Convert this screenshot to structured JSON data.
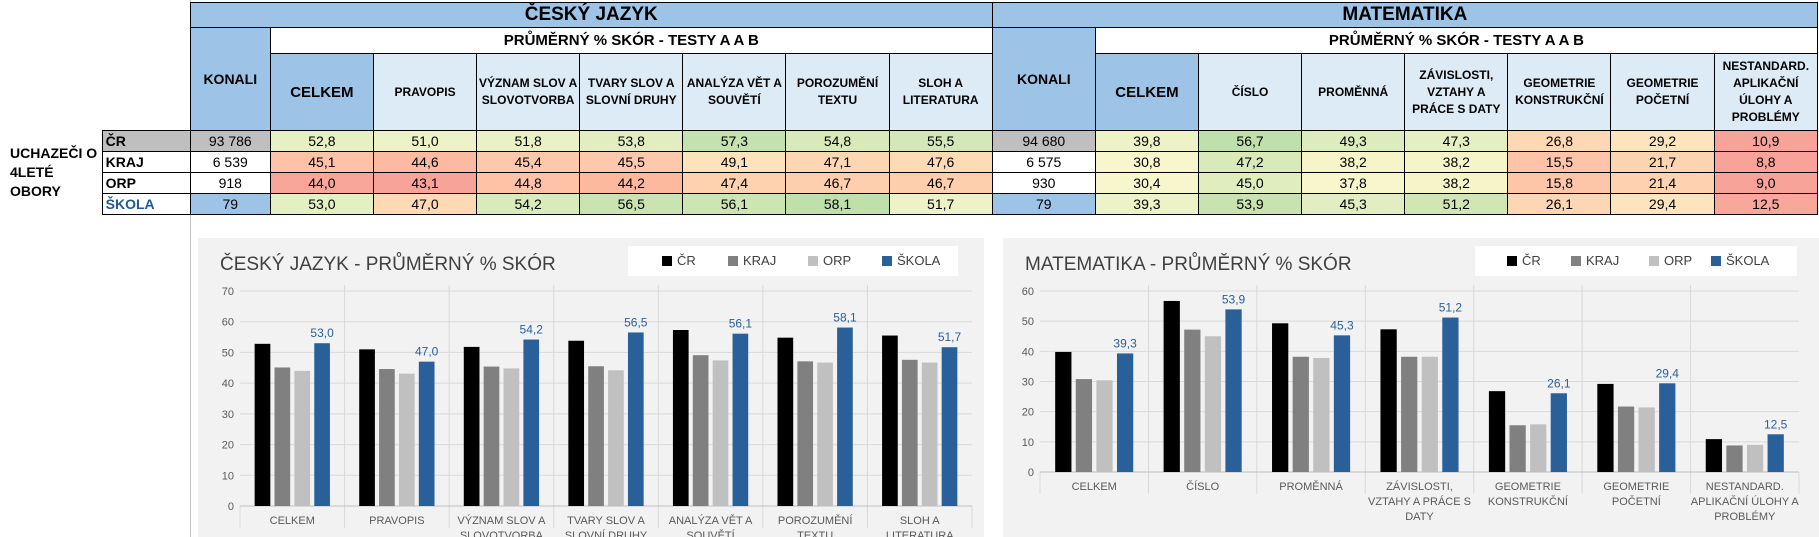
{
  "table": {
    "row_group_label": "UCHAZEČI O 4LETÉ OBORY",
    "row_labels": [
      "ČR",
      "KRAJ",
      "ORP",
      "ŠKOLA"
    ],
    "cj": {
      "subject": "ČESKÝ JAZYK",
      "konali_label": "KONALI",
      "avg_header": "PRŮMĚRNÝ % SKÓR - TESTY A A B",
      "columns": [
        "CELKEM",
        "PRAVOPIS",
        "VÝZNAM SLOV A SLOVOTVORBA",
        "TVARY SLOV A SLOVNÍ DRUHY",
        "ANALÝZA VĚT A SOUVĚTÍ",
        "POROZUMĚNÍ TEXTU",
        "SLOH A LITERATURA"
      ],
      "rows": [
        {
          "konali": "93 786",
          "values": [
            "52,8",
            "51,0",
            "51,8",
            "53,8",
            "57,3",
            "54,8",
            "55,5"
          ]
        },
        {
          "konali": "6 539",
          "values": [
            "45,1",
            "44,6",
            "45,4",
            "45,5",
            "49,1",
            "47,1",
            "47,6"
          ]
        },
        {
          "konali": "918",
          "values": [
            "44,0",
            "43,1",
            "44,8",
            "44,2",
            "47,4",
            "46,7",
            "46,7"
          ]
        },
        {
          "konali": "79",
          "values": [
            "53,0",
            "47,0",
            "54,2",
            "56,5",
            "56,1",
            "58,1",
            "51,7"
          ]
        }
      ],
      "colors": [
        [
          "#e7f0c4",
          "#eef3c7",
          "#ebf1c5",
          "#e2eec1",
          "#c4e2ad",
          "#d8eab9",
          "#d3e8b6"
        ],
        [
          "#fdc2a8",
          "#fdbaa2",
          "#fdc8ac",
          "#fdc8ac",
          "#fde3bb",
          "#fdd6b3",
          "#fddbb5"
        ],
        [
          "#f8a69a",
          "#f8a399",
          "#fdc2a8",
          "#fdb8a0",
          "#fdd2b0",
          "#fdcfae",
          "#fdcfae"
        ],
        [
          "#e4efc2",
          "#fdd9b4",
          "#d9ebba",
          "#c9e4b0",
          "#cce5b1",
          "#bfe0aa",
          "#eef3c7"
        ]
      ]
    },
    "ma": {
      "subject": "MATEMATIKA",
      "konali_label": "KONALI",
      "avg_header": "PRŮMĚRNÝ % SKÓR - TESTY A A B",
      "columns": [
        "CELKEM",
        "ČÍSLO",
        "PROMĚNNÁ",
        "ZÁVISLOSTI, VZTAHY A PRÁCE S DATY",
        "GEOMETRIE KONSTRUKČNÍ",
        "GEOMETRIE POČETNÍ",
        "NESTANDARD. APLIKAČNÍ ÚLOHY A PROBLÉMY"
      ],
      "rows": [
        {
          "konali": "94 680",
          "values": [
            "39,8",
            "56,7",
            "49,3",
            "47,3",
            "26,8",
            "29,2",
            "10,9"
          ]
        },
        {
          "konali": "6 575",
          "values": [
            "30,8",
            "47,2",
            "38,2",
            "38,2",
            "15,5",
            "21,7",
            "8,8"
          ]
        },
        {
          "konali": "930",
          "values": [
            "30,4",
            "45,0",
            "37,8",
            "38,2",
            "15,8",
            "21,4",
            "9,0"
          ]
        },
        {
          "konali": "79",
          "values": [
            "39,3",
            "53,9",
            "45,3",
            "51,2",
            "26,1",
            "29,4",
            "12,5"
          ]
        }
      ],
      "colors": [
        [
          "#eef3c7",
          "#c0e0ab",
          "#dcecbc",
          "#e4efc2",
          "#fdd8b4",
          "#fce4bd",
          "#f8a39a"
        ],
        [
          "#f8f6cc",
          "#d8eab9",
          "#f6f5ca",
          "#f6f5ca",
          "#fdc4a9",
          "#fdd4b1",
          "#f8a39a"
        ],
        [
          "#f8f6cc",
          "#e0edbf",
          "#f8f6cc",
          "#f6f5ca",
          "#fdc6aa",
          "#fdd2b0",
          "#f8a39a"
        ],
        [
          "#eef3c7",
          "#c8e3af",
          "#e2eec1",
          "#d0e7b4",
          "#fdd6b3",
          "#fce4bd",
          "#f8a79b"
        ]
      ]
    },
    "konali_colors": [
      "#bfbfbf",
      "#ffffff",
      "#ffffff",
      "#9dc3e6"
    ]
  },
  "legend": [
    "ČR",
    "KRAJ",
    "ORP",
    "ŠKOLA"
  ],
  "series_colors": [
    "#000000",
    "#808080",
    "#c0c0c0",
    "#2a6099"
  ],
  "label_color": "#2a6099",
  "chart_data": [
    {
      "type": "bar",
      "title": "ČESKÝ JAZYK - PRŮMĚRNÝ % SKÓR",
      "categories": [
        [
          "CELKEM"
        ],
        [
          "PRAVOPIS"
        ],
        [
          "VÝZNAM SLOV A",
          "SLOVOTVORBA"
        ],
        [
          "TVARY SLOV A",
          "SLOVNÍ DRUHY"
        ],
        [
          "ANALÝZA VĚT A",
          "SOUVĚTÍ"
        ],
        [
          "POROZUMĚNÍ",
          "TEXTU"
        ],
        [
          "SLOH A",
          "LITERATURA"
        ]
      ],
      "series": [
        {
          "name": "ČR",
          "values": [
            52.8,
            51.0,
            51.8,
            53.8,
            57.3,
            54.8,
            55.5
          ]
        },
        {
          "name": "KRAJ",
          "values": [
            45.1,
            44.6,
            45.4,
            45.5,
            49.1,
            47.1,
            47.6
          ]
        },
        {
          "name": "ORP",
          "values": [
            44.0,
            43.1,
            44.8,
            44.2,
            47.4,
            46.7,
            46.7
          ]
        },
        {
          "name": "ŠKOLA",
          "values": [
            53.0,
            47.0,
            54.2,
            56.5,
            56.1,
            58.1,
            51.7
          ]
        }
      ],
      "data_labels_series": "ŠKOLA",
      "data_labels": [
        "53,0",
        "47,0",
        "54,2",
        "56,5",
        "56,1",
        "58,1",
        "51,7"
      ],
      "ylim": [
        0,
        70
      ],
      "yticks": [
        0,
        10,
        20,
        30,
        40,
        50,
        60,
        70
      ],
      "grid": true,
      "legend_position": "top-right"
    },
    {
      "type": "bar",
      "title": "MATEMATIKA - PRŮMĚRNÝ % SKÓR",
      "categories": [
        [
          "CELKEM"
        ],
        [
          "ČÍSLO"
        ],
        [
          "PROMĚNNÁ"
        ],
        [
          "ZÁVISLOSTI,",
          "VZTAHY A PRÁCE S",
          "DATY"
        ],
        [
          "GEOMETRIE",
          "KONSTRUKČNÍ"
        ],
        [
          "GEOMETRIE",
          "POČETNÍ"
        ],
        [
          "NESTANDARD.",
          "APLIKAČNÍ ÚLOHY A",
          "PROBLÉMY"
        ]
      ],
      "series": [
        {
          "name": "ČR",
          "values": [
            39.8,
            56.7,
            49.3,
            47.3,
            26.8,
            29.2,
            10.9
          ]
        },
        {
          "name": "KRAJ",
          "values": [
            30.8,
            47.2,
            38.2,
            38.2,
            15.5,
            21.7,
            8.8
          ]
        },
        {
          "name": "ORP",
          "values": [
            30.4,
            45.0,
            37.8,
            38.2,
            15.8,
            21.4,
            9.0
          ]
        },
        {
          "name": "ŠKOLA",
          "values": [
            39.3,
            53.9,
            45.3,
            51.2,
            26.1,
            29.4,
            12.5
          ]
        }
      ],
      "data_labels_series": "ŠKOLA",
      "data_labels": [
        "39,3",
        "53,9",
        "45,3",
        "51,2",
        "26,1",
        "29,4",
        "12,5"
      ],
      "ylim": [
        0,
        60
      ],
      "yticks": [
        0,
        10,
        20,
        30,
        40,
        50,
        60
      ],
      "grid": true,
      "legend_position": "top-right"
    }
  ]
}
